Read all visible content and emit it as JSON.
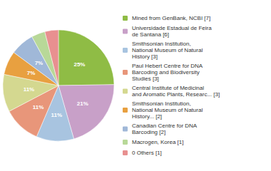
{
  "chart_data": {
    "type": "pie",
    "categories": [
      "Mined from GenBank, NCBI [7]",
      "Universidade Estadual de Feira\nde Santana [6]",
      "Smithsonian Institution,\nNational Museum of Natural\nHistory [3]",
      "Paul Hebert Centre for DNA\nBarcoding and Biodiversity\nStudies [3]",
      "Central Institute of Medicinal\nand Aromatic Plants, Researc... [3]",
      "Smithsonian Institution,\nNational Museum of Natural\nHistory... [2]",
      "Canadian Centre for DNA\nBarcoding [2]",
      "Macrogen, Korea [1]",
      "0 Others [1]"
    ],
    "values": [
      25,
      21,
      11,
      11,
      11,
      7,
      7,
      4,
      4
    ],
    "value_labels": [
      "25%",
      "21%",
      "11%",
      "11%",
      "11%",
      "7%",
      "7%",
      null,
      null
    ],
    "colors": [
      "#8fbc45",
      "#c8a0c8",
      "#a8c4e0",
      "#e8967a",
      "#d4d890",
      "#e8a040",
      "#a0b8d8",
      "#b8d898",
      "#e89090"
    ],
    "data_labels": true,
    "legend": "right"
  }
}
